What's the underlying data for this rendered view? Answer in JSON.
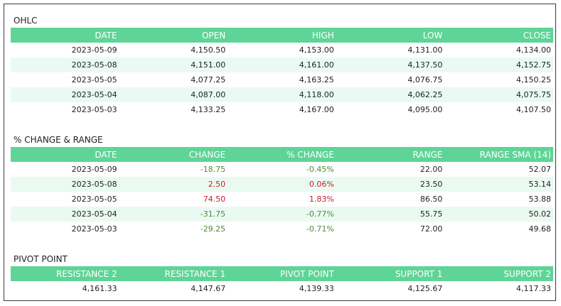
{
  "ohlc": {
    "title": "OHLC",
    "headers": [
      "DATE",
      "OPEN",
      "HIGH",
      "LOW",
      "CLOSE"
    ],
    "rows": [
      [
        "2023-05-09",
        "4,150.50",
        "4,153.00",
        "4,131.00",
        "4,134.00"
      ],
      [
        "2023-05-08",
        "4,151.00",
        "4,161.00",
        "4,137.50",
        "4,152.75"
      ],
      [
        "2023-05-05",
        "4,077.25",
        "4,163.25",
        "4,076.75",
        "4,150.25"
      ],
      [
        "2023-05-04",
        "4,087.00",
        "4,118.00",
        "4,062.25",
        "4,075.75"
      ],
      [
        "2023-05-03",
        "4,133.25",
        "4,167.00",
        "4,095.00",
        "4,107.50"
      ]
    ]
  },
  "change_range": {
    "title": "% CHANGE & RANGE",
    "headers": [
      "DATE",
      "CHANGE",
      "% CHANGE",
      "RANGE",
      "RANGE SMA (14)"
    ],
    "rows": [
      [
        "2023-05-09",
        "-18.75",
        "-0.45%",
        "22.00",
        "52.07"
      ],
      [
        "2023-05-08",
        "2.50",
        "0.06%",
        "23.50",
        "53.14"
      ],
      [
        "2023-05-05",
        "74.50",
        "1.83%",
        "86.50",
        "53.88"
      ],
      [
        "2023-05-04",
        "-31.75",
        "-0.77%",
        "55.75",
        "50.02"
      ],
      [
        "2023-05-03",
        "-29.25",
        "-0.71%",
        "72.00",
        "49.68"
      ]
    ]
  },
  "pivot": {
    "title": "PIVOT POINT",
    "headers": [
      "RESISTANCE 2",
      "RESISTANCE 1",
      "PIVOT POINT",
      "SUPPORT 1",
      "SUPPORT 2"
    ],
    "values": [
      "4,161.33",
      "4,147.67",
      "4,139.33",
      "4,125.67",
      "4,117.33"
    ]
  },
  "colors": {
    "header_bg": "#5fd497",
    "alt_row_bg": "#eafaf2",
    "negative": "#4f8a3a",
    "positive": "#c9202a"
  }
}
